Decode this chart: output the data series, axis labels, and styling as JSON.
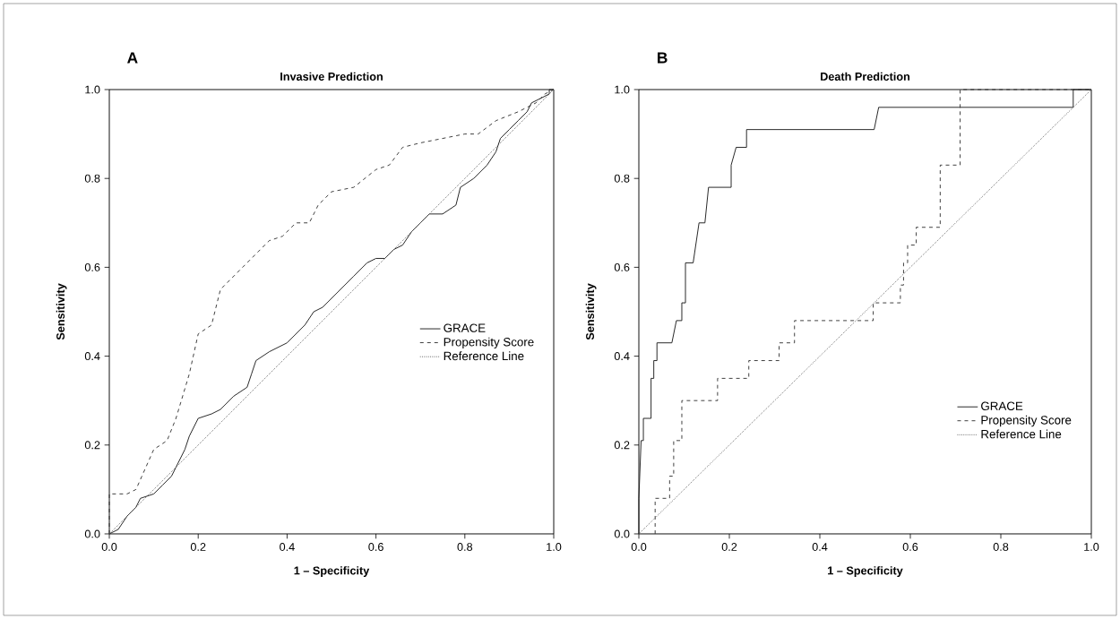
{
  "chart_data": [
    {
      "type": "line",
      "title": "Invasive Prediction",
      "xlabel": "1 – Specificity",
      "ylabel": "Sensitivity",
      "annotations": [
        "A"
      ],
      "legend": "right",
      "xlim": [
        0,
        1
      ],
      "ylim": [
        0,
        1
      ],
      "xticks": [
        {
          "value": 0,
          "label": "0.0"
        },
        {
          "value": 0.2,
          "label": "0.2"
        },
        {
          "value": 0.4,
          "label": "0.4"
        },
        {
          "value": 0.6,
          "label": "0.6"
        },
        {
          "value": 0.8,
          "label": "0.8"
        },
        {
          "value": 1,
          "label": "1.0"
        }
      ],
      "yticks": [
        {
          "value": 0,
          "label": "0.0"
        },
        {
          "value": 0.2,
          "label": "0.2"
        },
        {
          "value": 0.4,
          "label": "0.4"
        },
        {
          "value": 0.6,
          "label": "0.6"
        },
        {
          "value": 0.8,
          "label": "0.8"
        },
        {
          "value": 1,
          "label": "1.0"
        }
      ],
      "series": [
        {
          "name": "GRACE",
          "color": "#1a1a1a",
          "line_style": "solid",
          "x": [
            0,
            0.02,
            0.04,
            0.06,
            0.07,
            0.1,
            0.12,
            0.14,
            0.15,
            0.17,
            0.18,
            0.2,
            0.23,
            0.25,
            0.28,
            0.31,
            0.32,
            0.33,
            0.36,
            0.4,
            0.44,
            0.46,
            0.48,
            0.5,
            0.52,
            0.55,
            0.58,
            0.6,
            0.62,
            0.64,
            0.66,
            0.68,
            0.7,
            0.72,
            0.75,
            0.78,
            0.79,
            0.82,
            0.85,
            0.87,
            0.88,
            0.9,
            0.92,
            0.94,
            0.95,
            0.97,
            0.99,
            0.99,
            1
          ],
          "values": [
            0,
            0.01,
            0.04,
            0.06,
            0.08,
            0.09,
            0.11,
            0.13,
            0.15,
            0.19,
            0.22,
            0.26,
            0.27,
            0.28,
            0.31,
            0.33,
            0.36,
            0.39,
            0.41,
            0.43,
            0.47,
            0.5,
            0.51,
            0.53,
            0.55,
            0.58,
            0.61,
            0.62,
            0.62,
            0.64,
            0.65,
            0.68,
            0.7,
            0.72,
            0.72,
            0.74,
            0.78,
            0.8,
            0.83,
            0.86,
            0.89,
            0.91,
            0.93,
            0.95,
            0.97,
            0.98,
            0.99,
            1,
            1
          ]
        },
        {
          "name": "Propensity Score",
          "color": "#333333",
          "line_style": "dashed",
          "x": [
            0,
            0,
            0.04,
            0.06,
            0.1,
            0.13,
            0.15,
            0.18,
            0.2,
            0.23,
            0.25,
            0.28,
            0.3,
            0.33,
            0.36,
            0.39,
            0.42,
            0.45,
            0.47,
            0.5,
            0.55,
            0.6,
            0.63,
            0.66,
            0.7,
            0.75,
            0.8,
            0.83,
            0.87,
            0.92,
            0.96,
            0.98,
            1
          ],
          "values": [
            0,
            0.09,
            0.09,
            0.1,
            0.19,
            0.21,
            0.26,
            0.36,
            0.45,
            0.47,
            0.55,
            0.58,
            0.6,
            0.63,
            0.66,
            0.67,
            0.7,
            0.7,
            0.74,
            0.77,
            0.78,
            0.82,
            0.83,
            0.87,
            0.88,
            0.89,
            0.9,
            0.9,
            0.93,
            0.95,
            0.97,
            0.99,
            1
          ]
        },
        {
          "name": "Reference Line",
          "color": "#555555",
          "line_style": "dotted",
          "x": [
            0,
            1
          ],
          "values": [
            0,
            1
          ]
        }
      ]
    },
    {
      "type": "line",
      "title": "Death Prediction",
      "xlabel": "1 – Specificity",
      "ylabel": "Sensitivity",
      "annotations": [
        "B"
      ],
      "legend": "bottom right",
      "xlim": [
        0,
        1
      ],
      "ylim": [
        0,
        1
      ],
      "xticks": [
        {
          "value": 0,
          "label": "0.0"
        },
        {
          "value": 0.2,
          "label": "0.2"
        },
        {
          "value": 0.4,
          "label": "0.4"
        },
        {
          "value": 0.6,
          "label": "0.6"
        },
        {
          "value": 0.8,
          "label": "0.8"
        },
        {
          "value": 1,
          "label": "1.0"
        }
      ],
      "yticks": [
        {
          "value": 0,
          "label": "0.0"
        },
        {
          "value": 0.2,
          "label": "0.2"
        },
        {
          "value": 0.4,
          "label": "0.4"
        },
        {
          "value": 0.6,
          "label": "0.6"
        },
        {
          "value": 0.8,
          "label": "0.8"
        },
        {
          "value": 1,
          "label": "1.0"
        }
      ],
      "series": [
        {
          "name": "GRACE",
          "color": "#1a1a1a",
          "line_style": "solid",
          "x": [
            0,
            0,
            0.005,
            0.01,
            0.01,
            0.027,
            0.027,
            0.033,
            0.033,
            0.04,
            0.04,
            0.073,
            0.083,
            0.095,
            0.095,
            0.103,
            0.103,
            0.12,
            0.133,
            0.146,
            0.154,
            0.204,
            0.204,
            0.215,
            0.238,
            0.238,
            0.52,
            0.53,
            0.96,
            0.96,
            1
          ],
          "values": [
            0,
            0.08,
            0.21,
            0.21,
            0.26,
            0.26,
            0.35,
            0.35,
            0.39,
            0.39,
            0.43,
            0.43,
            0.48,
            0.48,
            0.52,
            0.52,
            0.61,
            0.61,
            0.7,
            0.7,
            0.78,
            0.78,
            0.83,
            0.87,
            0.87,
            0.91,
            0.91,
            0.96,
            0.96,
            1,
            1
          ]
        },
        {
          "name": "Propensity Score",
          "color": "#333333",
          "line_style": "dashed",
          "x": [
            0.036,
            0.036,
            0.068,
            0.068,
            0.077,
            0.077,
            0.095,
            0.095,
            0.174,
            0.174,
            0.243,
            0.243,
            0.31,
            0.31,
            0.344,
            0.344,
            0.518,
            0.518,
            0.578,
            0.578,
            0.585,
            0.585,
            0.594,
            0.594,
            0.613,
            0.613,
            0.666,
            0.666,
            0.71,
            0.71,
            1
          ],
          "values": [
            0,
            0.08,
            0.08,
            0.13,
            0.13,
            0.21,
            0.21,
            0.3,
            0.3,
            0.35,
            0.35,
            0.39,
            0.39,
            0.43,
            0.43,
            0.48,
            0.48,
            0.52,
            0.52,
            0.56,
            0.56,
            0.61,
            0.61,
            0.65,
            0.65,
            0.69,
            0.69,
            0.83,
            0.83,
            1,
            1
          ]
        },
        {
          "name": "Reference Line",
          "color": "#555555",
          "line_style": "dotted",
          "x": [
            0,
            1
          ],
          "values": [
            0,
            1
          ]
        }
      ]
    }
  ]
}
